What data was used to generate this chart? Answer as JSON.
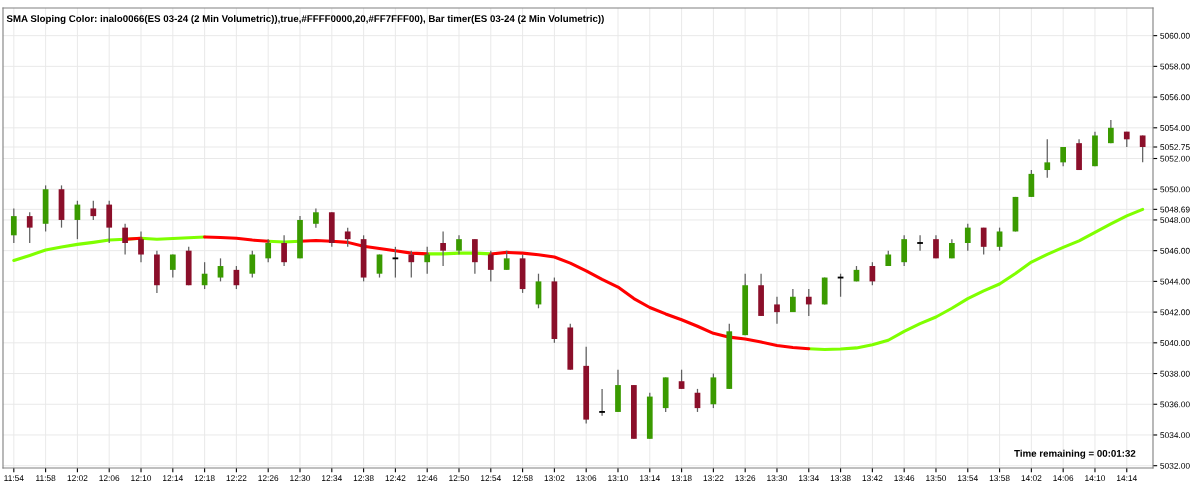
{
  "chart_data": {
    "type": "candlestick",
    "title": "SMA Sloping Color: inalo0066(ES 03-24 (2 Min Volumetric)),true,#FFFF0000,20,#FF7FFF00), Bar timer(ES 03-24 (2 Min Volumetric))",
    "categories": [
      "11:54",
      null,
      "11:58",
      null,
      "12:02",
      null,
      "12:06",
      null,
      "12:10",
      null,
      "12:14",
      null,
      "12:18",
      null,
      "12:22",
      null,
      "12:26",
      null,
      "12:30",
      null,
      "12:34",
      null,
      "12:38",
      null,
      "12:42",
      null,
      "12:46",
      null,
      "12:50",
      null,
      "12:54",
      null,
      "12:58",
      null,
      "13:02",
      null,
      "13:06",
      null,
      "13:10",
      null,
      "13:14",
      null,
      "13:18",
      null,
      "13:22",
      null,
      "13:26",
      null,
      "13:30",
      null,
      "13:34",
      null,
      "13:38",
      null,
      "13:42",
      null,
      "13:46",
      null,
      "13:50",
      null,
      "13:54",
      null,
      "13:58",
      null,
      "14:02",
      null,
      "14:06",
      null,
      "14:10",
      null,
      "14:14",
      null
    ],
    "ohlc": [
      [
        5047.0,
        5048.75,
        5046.5,
        5048.25
      ],
      [
        5048.25,
        5048.5,
        5046.5,
        5047.5
      ],
      [
        5047.75,
        5050.25,
        5047.25,
        5050.0
      ],
      [
        5050.0,
        5050.25,
        5047.5,
        5048.0
      ],
      [
        5048.0,
        5049.25,
        5046.75,
        5049.0
      ],
      [
        5048.75,
        5049.25,
        5048.0,
        5048.25
      ],
      [
        5049.0,
        5049.25,
        5046.5,
        5047.5
      ],
      [
        5047.5,
        5047.75,
        5045.75,
        5046.5
      ],
      [
        5046.75,
        5047.25,
        5045.25,
        5045.75
      ],
      [
        5045.75,
        5046.0,
        5043.25,
        5043.75
      ],
      [
        5044.75,
        5045.75,
        5044.25,
        5045.75
      ],
      [
        5046.0,
        5046.25,
        5043.75,
        5043.75
      ],
      [
        5043.75,
        5045.25,
        5043.5,
        5044.5
      ],
      [
        5044.25,
        5045.5,
        5044.0,
        5045.0
      ],
      [
        5044.75,
        5045.0,
        5043.5,
        5043.75
      ],
      [
        5044.5,
        5046.0,
        5044.25,
        5045.75
      ],
      [
        5045.5,
        5046.75,
        5045.25,
        5046.5
      ],
      [
        5046.5,
        5047.0,
        5045.0,
        5045.25
      ],
      [
        5045.5,
        5048.25,
        5045.5,
        5048.0
      ],
      [
        5047.75,
        5048.75,
        5047.5,
        5048.5
      ],
      [
        5048.5,
        5048.5,
        5046.25,
        5046.5
      ],
      [
        5047.25,
        5047.5,
        5046.25,
        5046.75
      ],
      [
        5046.75,
        5047.0,
        5044.0,
        5044.25
      ],
      [
        5044.5,
        5045.75,
        5044.25,
        5045.75
      ],
      [
        5045.5,
        5046.25,
        5044.25,
        5045.5
      ],
      [
        5045.75,
        5046.0,
        5044.25,
        5045.25
      ],
      [
        5045.25,
        5046.25,
        5044.5,
        5045.75
      ],
      [
        5046.5,
        5047.25,
        5045.0,
        5046.0
      ],
      [
        5046.0,
        5047.0,
        5045.75,
        5046.75
      ],
      [
        5046.75,
        5046.75,
        5044.5,
        5045.25
      ],
      [
        5045.75,
        5046.0,
        5044.0,
        5044.75
      ],
      [
        5044.75,
        5046.0,
        5044.75,
        5045.5
      ],
      [
        5045.5,
        5045.75,
        5043.25,
        5043.5
      ],
      [
        5042.5,
        5044.5,
        5042.25,
        5044.0
      ],
      [
        5044.0,
        5044.25,
        5040.0,
        5040.25
      ],
      [
        5041.0,
        5041.25,
        5038.25,
        5038.25
      ],
      [
        5038.5,
        5039.75,
        5034.75,
        5035.0
      ],
      [
        5035.5,
        5037.0,
        5035.25,
        5035.5
      ],
      [
        5035.5,
        5038.25,
        5035.5,
        5037.25
      ],
      [
        5037.25,
        5037.25,
        5033.75,
        5033.75
      ],
      [
        5033.75,
        5036.75,
        5033.75,
        5036.5
      ],
      [
        5035.75,
        5037.75,
        5035.5,
        5037.75
      ],
      [
        5037.5,
        5038.25,
        5037.0,
        5037.0
      ],
      [
        5036.75,
        5037.0,
        5035.5,
        5035.75
      ],
      [
        5036.0,
        5038.0,
        5035.75,
        5037.75
      ],
      [
        5037.0,
        5041.25,
        5037.0,
        5040.75
      ],
      [
        5040.5,
        5044.5,
        5040.5,
        5043.75
      ],
      [
        5043.75,
        5044.5,
        5041.75,
        5041.75
      ],
      [
        5042.5,
        5043.0,
        5041.25,
        5042.0
      ],
      [
        5042.0,
        5043.5,
        5042.0,
        5043.0
      ],
      [
        5043.0,
        5043.5,
        5041.75,
        5042.5
      ],
      [
        5042.5,
        5044.25,
        5042.5,
        5044.25
      ],
      [
        5044.25,
        5044.5,
        5043.0,
        5044.25
      ],
      [
        5044.0,
        5045.0,
        5044.0,
        5044.75
      ],
      [
        5045.0,
        5045.25,
        5043.75,
        5044.0
      ],
      [
        5045.0,
        5046.0,
        5045.0,
        5045.75
      ],
      [
        5045.25,
        5047.0,
        5045.0,
        5046.75
      ],
      [
        5046.5,
        5047.0,
        5046.0,
        5046.5
      ],
      [
        5046.75,
        5047.0,
        5045.5,
        5045.5
      ],
      [
        5045.5,
        5046.75,
        5045.5,
        5046.5
      ],
      [
        5046.5,
        5047.75,
        5046.0,
        5047.5
      ],
      [
        5047.5,
        5047.5,
        5045.75,
        5046.25
      ],
      [
        5046.25,
        5047.5,
        5046.0,
        5047.25
      ],
      [
        5047.25,
        5049.5,
        5047.25,
        5049.5
      ],
      [
        5049.5,
        5051.25,
        5049.5,
        5051.0
      ],
      [
        5051.25,
        5053.25,
        5050.75,
        5051.75
      ],
      [
        5051.75,
        5052.75,
        5051.5,
        5052.75
      ],
      [
        5053.0,
        5053.25,
        5051.25,
        5051.25
      ],
      [
        5051.5,
        5053.75,
        5051.5,
        5053.5
      ],
      [
        5053.0,
        5054.5,
        5053.0,
        5054.0
      ],
      [
        5053.75,
        5053.75,
        5052.75,
        5053.25
      ],
      [
        5053.5,
        5053.5,
        5051.75,
        5052.75
      ]
    ],
    "colors": [
      "#3a9a00",
      "#8b0f2a",
      "#3a9a00",
      "#8b0f2a",
      "#3a9a00",
      "#8b0f2a",
      "#8b0f2a",
      "#8b0f2a",
      "#8b0f2a",
      "#8b0f2a",
      "#3a9a00",
      "#8b0f2a",
      "#3a9a00",
      "#3a9a00",
      "#8b0f2a",
      "#3a9a00",
      "#3a9a00",
      "#8b0f2a",
      "#3a9a00",
      "#3a9a00",
      "#8b0f2a",
      "#8b0f2a",
      "#8b0f2a",
      "#3a9a00",
      "#000000",
      "#8b0f2a",
      "#3a9a00",
      "#8b0f2a",
      "#3a9a00",
      "#8b0f2a",
      "#8b0f2a",
      "#3a9a00",
      "#8b0f2a",
      "#3a9a00",
      "#8b0f2a",
      "#8b0f2a",
      "#8b0f2a",
      "#000000",
      "#3a9a00",
      "#8b0f2a",
      "#3a9a00",
      "#3a9a00",
      "#8b0f2a",
      "#8b0f2a",
      "#3a9a00",
      "#3a9a00",
      "#3a9a00",
      "#8b0f2a",
      "#8b0f2a",
      "#3a9a00",
      "#8b0f2a",
      "#3a9a00",
      "#000000",
      "#3a9a00",
      "#8b0f2a",
      "#3a9a00",
      "#3a9a00",
      "#000000",
      "#8b0f2a",
      "#3a9a00",
      "#3a9a00",
      "#8b0f2a",
      "#3a9a00",
      "#3a9a00",
      "#3a9a00",
      "#3a9a00",
      "#3a9a00",
      "#8b0f2a",
      "#3a9a00",
      "#3a9a00",
      "#8b0f2a",
      "#8b0f2a"
    ],
    "series": [
      {
        "type": "line",
        "color": "#7fff00",
        "values": [
          5045.36,
          5045.69,
          5046.04,
          5046.24,
          5046.41,
          5046.54,
          5046.69,
          5046.74,
          5046.81,
          5046.74,
          5046.79,
          5046.84,
          5046.89,
          null,
          null,
          null,
          5046.61,
          5046.56,
          5046.61,
          null,
          null,
          null,
          null,
          null,
          null,
          null,
          5045.79,
          5045.79,
          5045.84,
          5045.84,
          5045.79,
          null,
          null,
          null,
          null,
          null,
          null,
          null,
          null,
          null,
          null,
          null,
          null,
          null,
          null,
          null,
          null,
          null,
          null,
          null,
          5039.62,
          5039.57,
          5039.6,
          5039.67,
          5039.87,
          5040.17,
          5040.75,
          5041.25,
          5041.68,
          5042.25,
          5042.88,
          5043.38,
          5043.83,
          5044.51,
          5045.26,
          5045.76,
          5046.21,
          5046.64,
          5047.19,
          5047.74,
          5048.27,
          5048.69
        ]
      },
      {
        "type": "line",
        "color": "#ff0000",
        "values": [
          null,
          null,
          null,
          null,
          null,
          null,
          null,
          5046.74,
          5046.81,
          null,
          null,
          null,
          5046.89,
          5046.86,
          5046.81,
          5046.69,
          5046.61,
          null,
          5046.61,
          5046.66,
          5046.61,
          5046.54,
          5046.29,
          5046.14,
          5045.99,
          5045.84,
          5045.79,
          null,
          null,
          null,
          5045.79,
          5045.89,
          5045.84,
          5045.74,
          5045.59,
          5045.19,
          5044.69,
          5044.13,
          5043.63,
          5042.88,
          5042.3,
          5041.88,
          5041.5,
          5041.08,
          5040.62,
          5040.37,
          5040.25,
          5040.05,
          5039.82,
          5039.7,
          5039.62,
          null,
          null,
          null,
          null,
          null,
          null,
          null,
          null,
          null,
          null,
          null,
          null,
          null,
          null,
          null,
          null,
          null,
          null,
          null,
          null,
          null
        ]
      }
    ],
    "ylim": [
      5031.85,
      5061.8
    ],
    "yticks": [
      {
        "value": 5032,
        "label": "5032.00"
      },
      {
        "value": 5034,
        "label": "5034.00"
      },
      {
        "value": 5036,
        "label": "5036.00"
      },
      {
        "value": 5038,
        "label": "5038.00"
      },
      {
        "value": 5040,
        "label": "5040.00"
      },
      {
        "value": 5042,
        "label": "5042.00"
      },
      {
        "value": 5044,
        "label": "5044.00"
      },
      {
        "value": 5046,
        "label": "5046.00"
      },
      {
        "value": 5048,
        "label": "5048.00"
      },
      {
        "value": 5050,
        "label": "5050.00"
      },
      {
        "value": 5052,
        "label": "5052.00"
      },
      {
        "value": 5052.75,
        "label": "5052.75"
      },
      {
        "value": 5048.69,
        "label": "5048.69"
      },
      {
        "value": 5054,
        "label": "5054.00"
      },
      {
        "value": 5056,
        "label": "5056.00"
      },
      {
        "value": 5058,
        "label": "5058.00"
      },
      {
        "value": 5060,
        "label": "5060.00"
      }
    ],
    "annotations": [
      "Time remaining = 00:01:32"
    ],
    "grid": true,
    "legend": false
  }
}
